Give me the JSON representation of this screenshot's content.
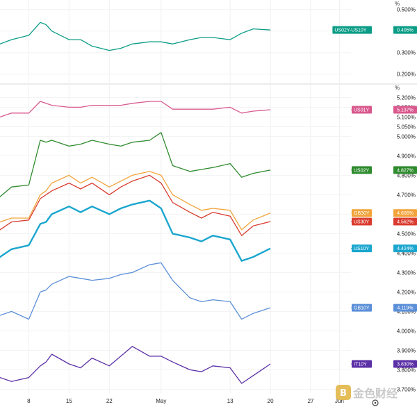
{
  "chart_data": [
    {
      "type": "line",
      "title": "",
      "unit": "%",
      "yticks": [
        "0.500%",
        "0.400%",
        "0.300%",
        "0.200%"
      ],
      "ylim": [
        0.17,
        0.525
      ],
      "series": [
        {
          "name": "US02Y-US10Y",
          "badge_label": "US02Y-US10Y",
          "badge_value": "0.405%",
          "color": "#0a9c86",
          "x": [
            "2024-04-01",
            "2024-04-03",
            "2024-04-05",
            "2024-04-08",
            "2024-04-10",
            "2024-04-11",
            "2024-04-12",
            "2024-04-15",
            "2024-04-17",
            "2024-04-19",
            "2024-04-22",
            "2024-04-24",
            "2024-04-26",
            "2024-04-29",
            "2024-05-01",
            "2024-05-03",
            "2024-05-06",
            "2024-05-08",
            "2024-05-10",
            "2024-05-13",
            "2024-05-15",
            "2024-05-17",
            "2024-05-20"
          ],
          "values": [
            0.33,
            0.34,
            0.36,
            0.38,
            0.44,
            0.43,
            0.4,
            0.36,
            0.36,
            0.33,
            0.31,
            0.32,
            0.34,
            0.35,
            0.35,
            0.34,
            0.36,
            0.37,
            0.37,
            0.36,
            0.39,
            0.41,
            0.405
          ]
        }
      ]
    },
    {
      "type": "line",
      "title": "",
      "unit": "%",
      "yticks": [
        "5.200%",
        "5.150%",
        "5.100%",
        "5.050%",
        "5.000%",
        "4.900%",
        "4.800%",
        "4.700%",
        "4.600%",
        "4.500%",
        "4.400%",
        "4.300%",
        "4.200%",
        "4.100%",
        "4.000%",
        "3.900%",
        "3.800%",
        "3.700%"
      ],
      "ylim": [
        3.68,
        5.23
      ],
      "series": [
        {
          "name": "US01Y",
          "badge_label": "US01Y",
          "badge_value": "5.137%",
          "color": "#d9588e",
          "x": [
            "2024-04-01",
            "2024-04-03",
            "2024-04-05",
            "2024-04-08",
            "2024-04-10",
            "2024-04-11",
            "2024-04-12",
            "2024-04-15",
            "2024-04-17",
            "2024-04-19",
            "2024-04-22",
            "2024-04-24",
            "2024-04-26",
            "2024-04-29",
            "2024-05-01",
            "2024-05-03",
            "2024-05-06",
            "2024-05-08",
            "2024-05-10",
            "2024-05-13",
            "2024-05-15",
            "2024-05-17",
            "2024-05-20"
          ],
          "values": [
            5.11,
            5.1,
            5.12,
            5.12,
            5.18,
            5.17,
            5.16,
            5.15,
            5.15,
            5.16,
            5.16,
            5.16,
            5.17,
            5.18,
            5.18,
            5.14,
            5.14,
            5.14,
            5.14,
            5.15,
            5.12,
            5.13,
            5.137
          ]
        },
        {
          "name": "US02Y",
          "badge_label": "US02Y",
          "badge_value": "4.827%",
          "color": "#2e8b2e",
          "x": [
            "2024-04-01",
            "2024-04-03",
            "2024-04-05",
            "2024-04-08",
            "2024-04-10",
            "2024-04-11",
            "2024-04-12",
            "2024-04-15",
            "2024-04-17",
            "2024-04-19",
            "2024-04-22",
            "2024-04-24",
            "2024-04-26",
            "2024-04-29",
            "2024-05-01",
            "2024-05-03",
            "2024-05-06",
            "2024-05-08",
            "2024-05-10",
            "2024-05-13",
            "2024-05-15",
            "2024-05-17",
            "2024-05-20"
          ],
          "values": [
            4.71,
            4.69,
            4.74,
            4.75,
            4.98,
            4.97,
            4.98,
            4.95,
            4.96,
            4.98,
            4.96,
            4.95,
            4.97,
            4.98,
            5.02,
            4.85,
            4.82,
            4.83,
            4.84,
            4.86,
            4.79,
            4.81,
            4.827
          ]
        },
        {
          "name": "GB30Y",
          "badge_label": "GB30Y",
          "badge_value": "4.606%",
          "color": "#f2a33a",
          "x": [
            "2024-04-01",
            "2024-04-03",
            "2024-04-05",
            "2024-04-08",
            "2024-04-10",
            "2024-04-11",
            "2024-04-12",
            "2024-04-15",
            "2024-04-17",
            "2024-04-19",
            "2024-04-22",
            "2024-04-24",
            "2024-04-26",
            "2024-04-29",
            "2024-05-01",
            "2024-05-03",
            "2024-05-06",
            "2024-05-08",
            "2024-05-10",
            "2024-05-13",
            "2024-05-15",
            "2024-05-17",
            "2024-05-20"
          ],
          "values": [
            4.55,
            4.56,
            4.58,
            4.58,
            4.7,
            4.72,
            4.76,
            4.8,
            4.76,
            4.79,
            4.74,
            4.77,
            4.8,
            4.82,
            4.8,
            4.7,
            4.65,
            4.62,
            4.63,
            4.62,
            4.52,
            4.57,
            4.606
          ]
        },
        {
          "name": "US30Y",
          "badge_label": "US30Y",
          "badge_value": "4.562%",
          "color": "#d93b2e",
          "x": [
            "2024-04-01",
            "2024-04-03",
            "2024-04-05",
            "2024-04-08",
            "2024-04-10",
            "2024-04-11",
            "2024-04-12",
            "2024-04-15",
            "2024-04-17",
            "2024-04-19",
            "2024-04-22",
            "2024-04-24",
            "2024-04-26",
            "2024-04-29",
            "2024-05-01",
            "2024-05-03",
            "2024-05-06",
            "2024-05-08",
            "2024-05-10",
            "2024-05-13",
            "2024-05-15",
            "2024-05-17",
            "2024-05-20"
          ],
          "values": [
            4.53,
            4.52,
            4.56,
            4.57,
            4.68,
            4.7,
            4.72,
            4.76,
            4.73,
            4.76,
            4.7,
            4.74,
            4.77,
            4.8,
            4.76,
            4.66,
            4.61,
            4.58,
            4.61,
            4.59,
            4.49,
            4.54,
            4.562
          ]
        },
        {
          "name": "US10Y",
          "badge_label": "US10Y",
          "badge_value": "4.424%",
          "color": "#1aa6cf",
          "x": [
            "2024-04-01",
            "2024-04-03",
            "2024-04-05",
            "2024-04-08",
            "2024-04-10",
            "2024-04-11",
            "2024-04-12",
            "2024-04-15",
            "2024-04-17",
            "2024-04-19",
            "2024-04-22",
            "2024-04-24",
            "2024-04-26",
            "2024-04-29",
            "2024-05-01",
            "2024-05-03",
            "2024-05-06",
            "2024-05-08",
            "2024-05-10",
            "2024-05-13",
            "2024-05-15",
            "2024-05-17",
            "2024-05-20"
          ],
          "values": [
            4.4,
            4.38,
            4.42,
            4.44,
            4.55,
            4.56,
            4.6,
            4.64,
            4.61,
            4.64,
            4.6,
            4.63,
            4.65,
            4.67,
            4.63,
            4.5,
            4.48,
            4.46,
            4.49,
            4.47,
            4.36,
            4.38,
            4.424
          ]
        },
        {
          "name": "GB10Y",
          "badge_label": "GB10Y",
          "badge_value": "4.119%",
          "color": "#5b8fd8",
          "x": [
            "2024-04-01",
            "2024-04-03",
            "2024-04-05",
            "2024-04-08",
            "2024-04-10",
            "2024-04-11",
            "2024-04-12",
            "2024-04-15",
            "2024-04-17",
            "2024-04-19",
            "2024-04-22",
            "2024-04-24",
            "2024-04-26",
            "2024-04-29",
            "2024-05-01",
            "2024-05-03",
            "2024-05-06",
            "2024-05-08",
            "2024-05-10",
            "2024-05-13",
            "2024-05-15",
            "2024-05-17",
            "2024-05-20"
          ],
          "values": [
            4.06,
            4.08,
            4.1,
            4.06,
            4.2,
            4.21,
            4.24,
            4.28,
            4.27,
            4.26,
            4.27,
            4.29,
            4.3,
            4.34,
            4.35,
            4.26,
            4.17,
            4.15,
            4.16,
            4.15,
            4.06,
            4.09,
            4.119
          ]
        },
        {
          "name": "IT10Y",
          "badge_label": "IT10Y",
          "badge_value": "3.830%",
          "color": "#5b2fa6",
          "x": [
            "2024-04-01",
            "2024-04-03",
            "2024-04-05",
            "2024-04-08",
            "2024-04-10",
            "2024-04-11",
            "2024-04-12",
            "2024-04-15",
            "2024-04-17",
            "2024-04-19",
            "2024-04-22",
            "2024-04-24",
            "2024-04-26",
            "2024-04-29",
            "2024-05-01",
            "2024-05-03",
            "2024-05-06",
            "2024-05-08",
            "2024-05-10",
            "2024-05-13",
            "2024-05-15",
            "2024-05-17",
            "2024-05-20"
          ],
          "values": [
            3.78,
            3.76,
            3.74,
            3.76,
            3.82,
            3.84,
            3.88,
            3.83,
            3.81,
            3.86,
            3.82,
            3.87,
            3.92,
            3.87,
            3.87,
            3.84,
            3.8,
            3.79,
            3.82,
            3.81,
            3.73,
            3.77,
            3.83
          ]
        }
      ]
    }
  ],
  "x_axis": {
    "start": "2024-04-03",
    "end": "2024-06-03",
    "ticks": [
      {
        "label": "8",
        "date": "2024-04-08"
      },
      {
        "label": "15",
        "date": "2024-04-15"
      },
      {
        "label": "22",
        "date": "2024-04-22"
      },
      {
        "label": "May",
        "date": "2024-05-01"
      },
      {
        "label": "13",
        "date": "2024-05-13"
      },
      {
        "label": "20",
        "date": "2024-05-20"
      },
      {
        "label": "27",
        "date": "2024-05-27"
      },
      {
        "label": "Jun",
        "date": "2024-06-01"
      }
    ]
  },
  "watermark": {
    "text": "金色财经",
    "icon": "coin-logo"
  },
  "settings_icon": "gear-icon",
  "colors": {
    "background": "#ffffff",
    "grid": "#e6e6e6",
    "text": "#222222"
  }
}
